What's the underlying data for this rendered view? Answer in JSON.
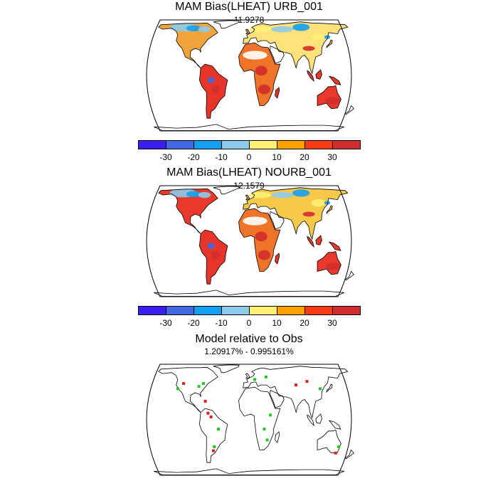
{
  "panels": [
    {
      "title": "MAM Bias(LHEAT) URB_001",
      "subtitle": "11.9278",
      "map_kind": "bias"
    },
    {
      "title": "MAM Bias(LHEAT) NOURB_001",
      "subtitle": "12.1579",
      "map_kind": "bias"
    },
    {
      "title": "Model relative to Obs",
      "subtitle": "1.20917% - 0.995161%",
      "map_kind": "relative"
    }
  ],
  "colorbar": {
    "colors": [
      "#3a1ff5",
      "#4169e1",
      "#14a0f0",
      "#8ecbea",
      "#fff173",
      "#ff9f00",
      "#fa3c14",
      "#d22d2d"
    ],
    "labels": [
      "-30",
      "-20",
      "-10",
      "0",
      "10",
      "20",
      "30"
    ]
  },
  "relative_colors": {
    "positive": "#22c822",
    "negative": "#e11e1e"
  }
}
